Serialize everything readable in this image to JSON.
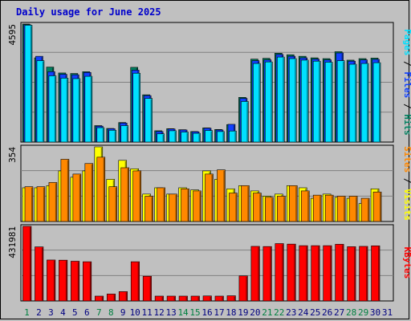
{
  "title": "Daily usage for June 2025",
  "colors": {
    "pages": "#00e0ff",
    "files": "#1040ff",
    "hits": "#008060",
    "visits": "#ffff00",
    "sites": "#ff8800",
    "kbytes": "#ff0000",
    "weekend_day": "#008040",
    "weekday": "#000080"
  },
  "chart_data": [
    {
      "type": "bar",
      "title": "Pages / Files / Hits",
      "ylabel_max": "4595",
      "ylim": [
        0,
        4595
      ],
      "categories": [
        "1",
        "2",
        "3",
        "4",
        "5",
        "6",
        "7",
        "8",
        "9",
        "10",
        "11",
        "12",
        "13",
        "14",
        "15",
        "16",
        "17",
        "18",
        "19",
        "20",
        "21",
        "22",
        "23",
        "24",
        "25",
        "26",
        "27",
        "28",
        "29",
        "30",
        "31"
      ],
      "weekend_days": [
        "1",
        "7",
        "8",
        "14",
        "15",
        "21",
        "22",
        "28",
        "29"
      ],
      "series": [
        {
          "name": "Hits",
          "values": [
            4595,
            3280,
            2920,
            2690,
            2670,
            2740,
            640,
            530,
            760,
            2910,
            1840,
            440,
            520,
            480,
            410,
            550,
            490,
            680,
            1740,
            3230,
            3260,
            3460,
            3400,
            3340,
            3280,
            3250,
            3520,
            3190,
            3250,
            3270,
            0
          ]
        },
        {
          "name": "Files",
          "values": [
            4570,
            3340,
            2740,
            2640,
            2620,
            2710,
            620,
            520,
            740,
            2800,
            1810,
            410,
            510,
            470,
            400,
            540,
            470,
            690,
            1700,
            3170,
            3200,
            3410,
            3340,
            3280,
            3230,
            3200,
            3470,
            3150,
            3200,
            3220,
            0
          ]
        },
        {
          "name": "Pages",
          "values": [
            4550,
            3170,
            2580,
            2490,
            2470,
            2560,
            560,
            460,
            640,
            2680,
            1700,
            320,
            440,
            390,
            340,
            450,
            410,
            430,
            1580,
            3060,
            3120,
            3310,
            3250,
            3190,
            3150,
            3110,
            3170,
            3030,
            3060,
            3090,
            0
          ]
        }
      ]
    },
    {
      "type": "bar",
      "title": "Sites / Visits",
      "ylabel_max": "354",
      "ylim": [
        0,
        354
      ],
      "categories": [
        "1",
        "2",
        "3",
        "4",
        "5",
        "6",
        "7",
        "8",
        "9",
        "10",
        "11",
        "12",
        "13",
        "14",
        "15",
        "16",
        "17",
        "18",
        "19",
        "20",
        "21",
        "22",
        "23",
        "24",
        "25",
        "26",
        "27",
        "28",
        "29",
        "30",
        "31"
      ],
      "series": [
        {
          "name": "Visits",
          "values": [
            160,
            160,
            170,
            240,
            210,
            240,
            354,
            200,
            290,
            250,
            130,
            160,
            130,
            160,
            150,
            240,
            200,
            155,
            170,
            145,
            120,
            130,
            170,
            160,
            110,
            130,
            115,
            110,
            85,
            155,
            0
          ]
        },
        {
          "name": "Sites",
          "values": [
            165,
            165,
            185,
            295,
            225,
            275,
            305,
            165,
            255,
            240,
            120,
            160,
            130,
            155,
            145,
            225,
            245,
            135,
            170,
            135,
            115,
            120,
            170,
            145,
            125,
            125,
            120,
            120,
            110,
            140,
            0
          ]
        }
      ]
    },
    {
      "type": "bar",
      "title": "KBytes",
      "ylabel_max": "431981",
      "ylim": [
        0,
        431981
      ],
      "categories": [
        "1",
        "2",
        "3",
        "4",
        "5",
        "6",
        "7",
        "8",
        "9",
        "10",
        "11",
        "12",
        "13",
        "14",
        "15",
        "16",
        "17",
        "18",
        "19",
        "20",
        "21",
        "22",
        "23",
        "24",
        "25",
        "26",
        "27",
        "28",
        "29",
        "30",
        "31"
      ],
      "series": [
        {
          "name": "KBytes",
          "values": [
            431981,
            313000,
            237000,
            236000,
            230000,
            227000,
            28000,
            40000,
            54000,
            227000,
            143000,
            28000,
            28000,
            28000,
            28000,
            29000,
            28000,
            30000,
            145000,
            316000,
            315000,
            332000,
            329000,
            320000,
            320000,
            320000,
            328000,
            314000,
            316000,
            319000,
            0
          ]
        }
      ]
    }
  ]
}
